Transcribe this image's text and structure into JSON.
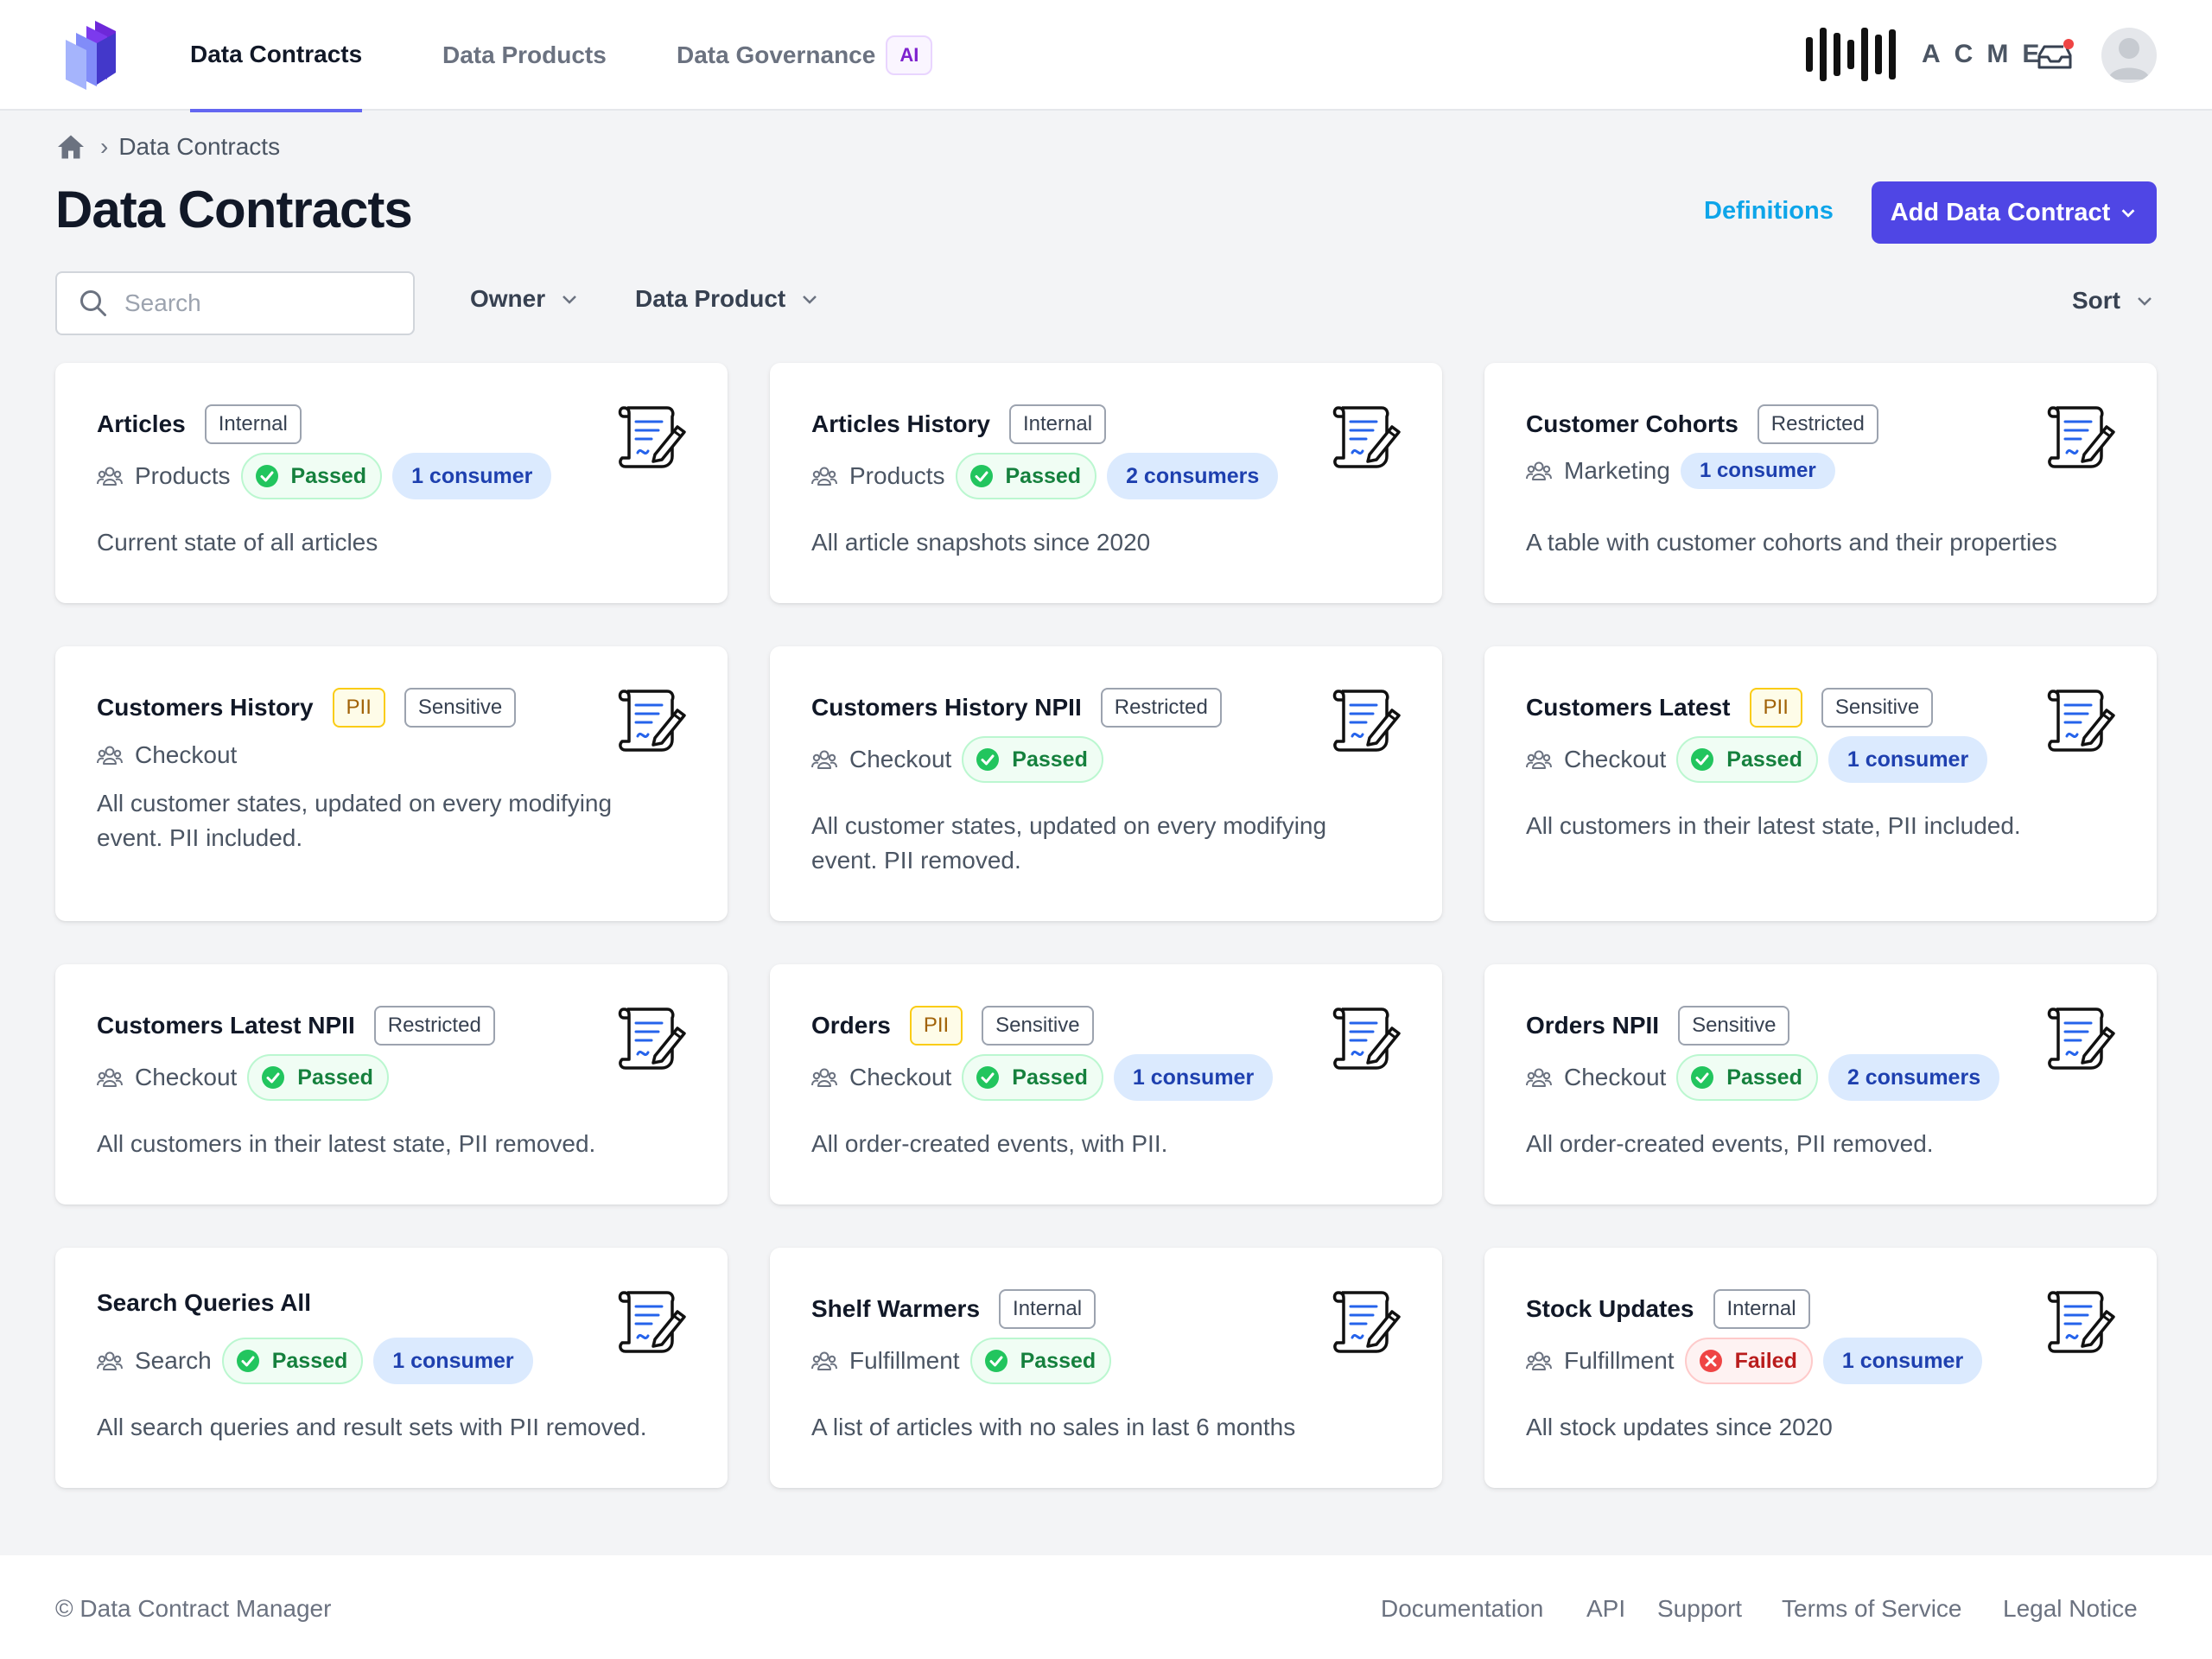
{
  "nav": {
    "tabs": [
      {
        "label": "Data Contracts",
        "active": true
      },
      {
        "label": "Data Products",
        "active": false
      },
      {
        "label": "Data Governance",
        "active": false,
        "badge": "AI"
      }
    ],
    "brand": "ACME"
  },
  "breadcrumb": {
    "current": "Data Contracts"
  },
  "page": {
    "title": "Data Contracts",
    "definitions_label": "Definitions",
    "add_label": "Add Data Contract"
  },
  "filters": {
    "search_placeholder": "Search",
    "owner_label": "Owner",
    "data_product_label": "Data Product",
    "sort_label": "Sort"
  },
  "colors": {
    "accent": "#4f46e5",
    "link": "#0ea5e9",
    "passed": "#22c55e",
    "failed": "#ef4444",
    "consumer_bg": "#dbeafe"
  },
  "cards": [
    {
      "title": "Articles",
      "tags": [
        "Internal"
      ],
      "team": "Products",
      "status": "Passed",
      "consumers": "1 consumer",
      "description": "Current state of all articles"
    },
    {
      "title": "Articles History",
      "tags": [
        "Internal"
      ],
      "team": "Products",
      "status": "Passed",
      "consumers": "2 consumers",
      "description": "All article snapshots since 2020"
    },
    {
      "title": "Customer Cohorts",
      "tags": [
        "Restricted"
      ],
      "team": "Marketing",
      "status": "",
      "consumers": "1 consumer",
      "description": "A table with customer cohorts and their properties"
    },
    {
      "title": "Customers History",
      "tags": [
        "PII",
        "Sensitive"
      ],
      "team": "Checkout",
      "status": "",
      "consumers": "",
      "description": "All customer states, updated on every modifying event. PII included."
    },
    {
      "title": "Customers History NPII",
      "tags": [
        "Restricted"
      ],
      "team": "Checkout",
      "status": "Passed",
      "consumers": "",
      "description": "All customer states, updated on every modifying event. PII removed."
    },
    {
      "title": "Customers Latest",
      "tags": [
        "PII",
        "Sensitive"
      ],
      "team": "Checkout",
      "status": "Passed",
      "consumers": "1 consumer",
      "description": "All customers in their latest state, PII included."
    },
    {
      "title": "Customers Latest NPII",
      "tags": [
        "Restricted"
      ],
      "team": "Checkout",
      "status": "Passed",
      "consumers": "",
      "description": "All customers in their latest state, PII removed."
    },
    {
      "title": "Orders",
      "tags": [
        "PII",
        "Sensitive"
      ],
      "team": "Checkout",
      "status": "Passed",
      "consumers": "1 consumer",
      "description": "All order-created events, with PII."
    },
    {
      "title": "Orders NPII",
      "tags": [
        "Sensitive"
      ],
      "team": "Checkout",
      "status": "Passed",
      "consumers": "2 consumers",
      "description": "All order-created events, PII removed."
    },
    {
      "title": "Search Queries All",
      "tags": [],
      "team": "Search",
      "status": "Passed",
      "consumers": "1 consumer",
      "description": "All search queries and result sets with PII removed."
    },
    {
      "title": "Shelf Warmers",
      "tags": [
        "Internal"
      ],
      "team": "Fulfillment",
      "status": "Passed",
      "consumers": "",
      "description": "A list of articles with no sales in last 6 months"
    },
    {
      "title": "Stock Updates",
      "tags": [
        "Internal"
      ],
      "team": "Fulfillment",
      "status": "Failed",
      "consumers": "1 consumer",
      "description": "All stock updates since 2020"
    }
  ],
  "footer": {
    "copyright": "© Data Contract Manager",
    "links": [
      "Documentation",
      "API",
      "Support",
      "Terms of Service",
      "Legal Notice"
    ]
  }
}
